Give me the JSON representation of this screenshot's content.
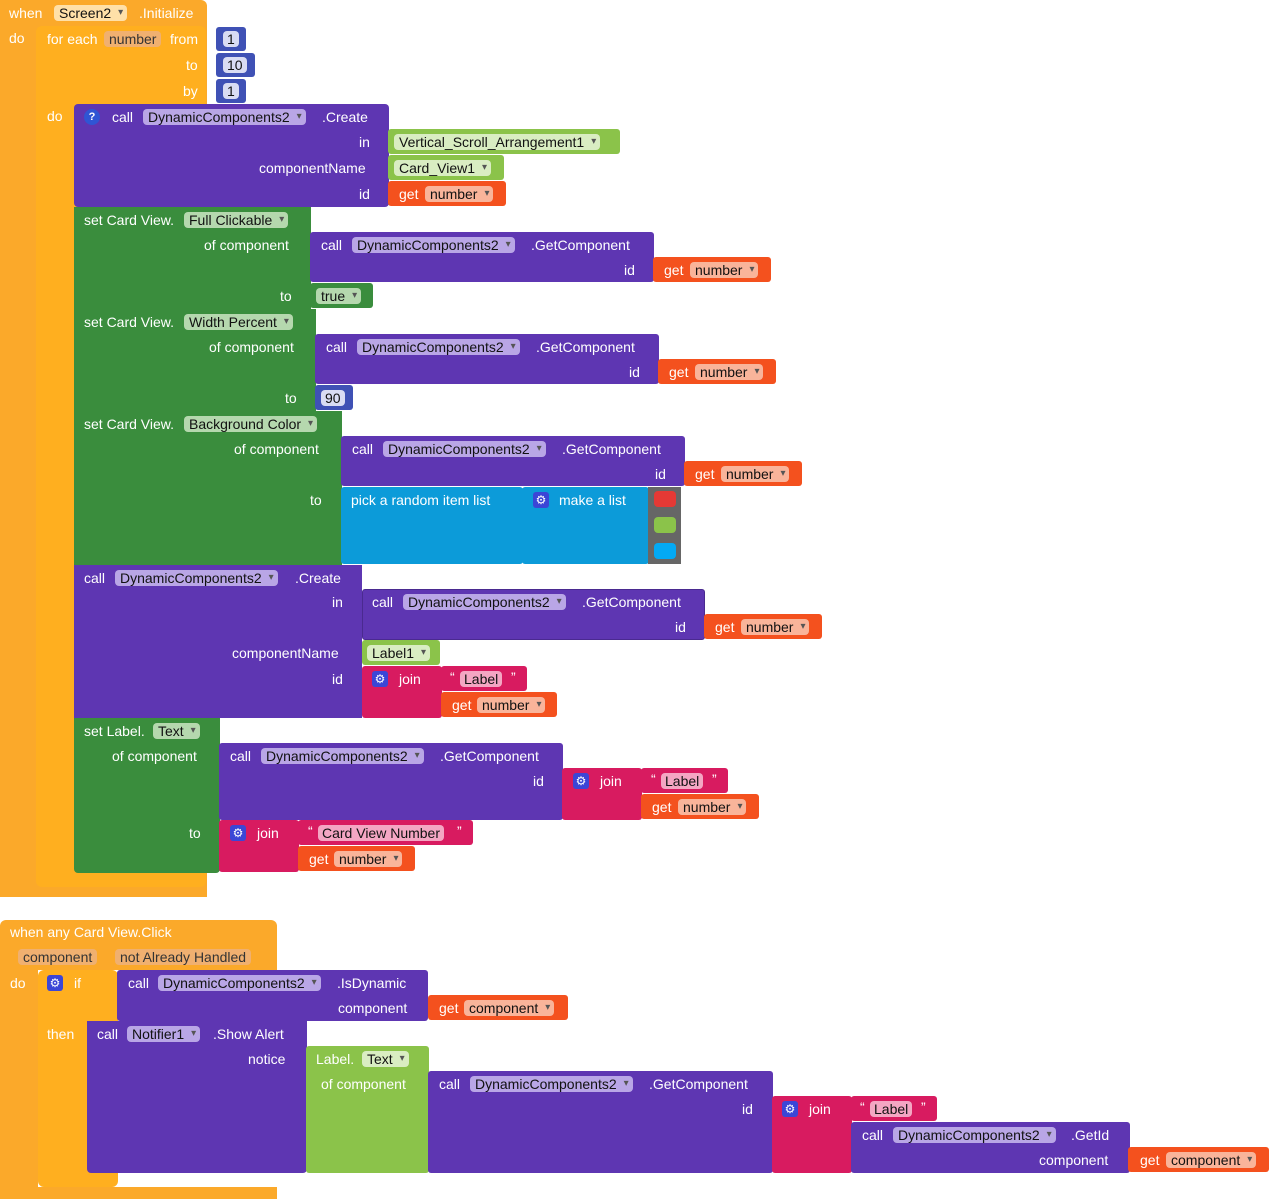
{
  "event1": {
    "when": "when",
    "component": "Screen2",
    "event": ".Initialize",
    "do": "do",
    "for_each": "for each",
    "var": "number",
    "from": "from",
    "to": "to",
    "by": "by",
    "from_val": "1",
    "to_val": "10",
    "by_val": "1",
    "loop_do": "do",
    "create1": {
      "call": "call",
      "comp": "DynamicComponents2",
      "method": ".Create",
      "in": "in",
      "in_val": "Vertical_Scroll_Arrangement1",
      "componentName": "componentName",
      "cn_val": "Card_View1",
      "id": "id",
      "get": "get",
      "get_var": "number"
    },
    "set1": {
      "set": "set Card View.",
      "prop": "Full Clickable",
      "of_component": "of component",
      "call": "call",
      "comp": "DynamicComponents2",
      "method": ".GetComponent",
      "id": "id",
      "get": "get",
      "get_var": "number",
      "to": "to",
      "val": "true"
    },
    "set2": {
      "set": "set Card View.",
      "prop": "Width Percent",
      "of_component": "of component",
      "call": "call",
      "comp": "DynamicComponents2",
      "method": ".GetComponent",
      "id": "id",
      "get": "get",
      "get_var": "number",
      "to": "to",
      "val": "90"
    },
    "set3": {
      "set": "set Card View.",
      "prop": "Background Color",
      "of_component": "of component",
      "call": "call",
      "comp": "DynamicComponents2",
      "method": ".GetComponent",
      "id": "id",
      "get": "get",
      "get_var": "number",
      "to": "to",
      "pick": "pick a random item  list",
      "make_list": "make a list",
      "colors": [
        "#E53935",
        "#8BC34A",
        "#03A9F4"
      ]
    },
    "create2": {
      "call": "call",
      "comp": "DynamicComponents2",
      "method": ".Create",
      "in": "in",
      "call2": "call",
      "comp2": "DynamicComponents2",
      "method2": ".GetComponent",
      "id2": "id",
      "get": "get",
      "get_var": "number",
      "componentName": "componentName",
      "cn_val": "Label1",
      "id": "id",
      "join": "join",
      "str_open": "“",
      "str": "Label",
      "str_close": "”",
      "get2": "get",
      "get_var2": "number"
    },
    "set4": {
      "set": "set Label.",
      "prop": "Text",
      "of_component": "of component",
      "call": "call",
      "comp": "DynamicComponents2",
      "method": ".GetComponent",
      "id": "id",
      "join": "join",
      "str_open": "“",
      "str": "Label",
      "str_close": "”",
      "get": "get",
      "get_var": "number",
      "to": "to",
      "join2": "join",
      "str2": "Card View Number",
      "get2": "get",
      "get_var2": "number"
    }
  },
  "event2": {
    "title": "when any Card View.Click",
    "param1": "component",
    "param2": "not Already Handled",
    "do": "do",
    "if": "if",
    "then": "then",
    "cond": {
      "call": "call",
      "comp": "DynamicComponents2",
      "method": ".IsDynamic",
      "component": "component",
      "get": "get",
      "get_var": "component"
    },
    "notify": {
      "call": "call",
      "comp": "Notifier1",
      "method": ".Show Alert",
      "notice": "notice",
      "label": "Label.",
      "prop": "Text",
      "of_component": "of component",
      "call2": "call",
      "comp2": "DynamicComponents2",
      "method2": ".GetComponent",
      "id": "id",
      "join": "join",
      "str_open": "“",
      "str": "Label",
      "str_close": "”",
      "call3": "call",
      "comp3": "DynamicComponents2",
      "method3": ".GetId",
      "component": "component",
      "get": "get",
      "get_var": "component"
    }
  }
}
